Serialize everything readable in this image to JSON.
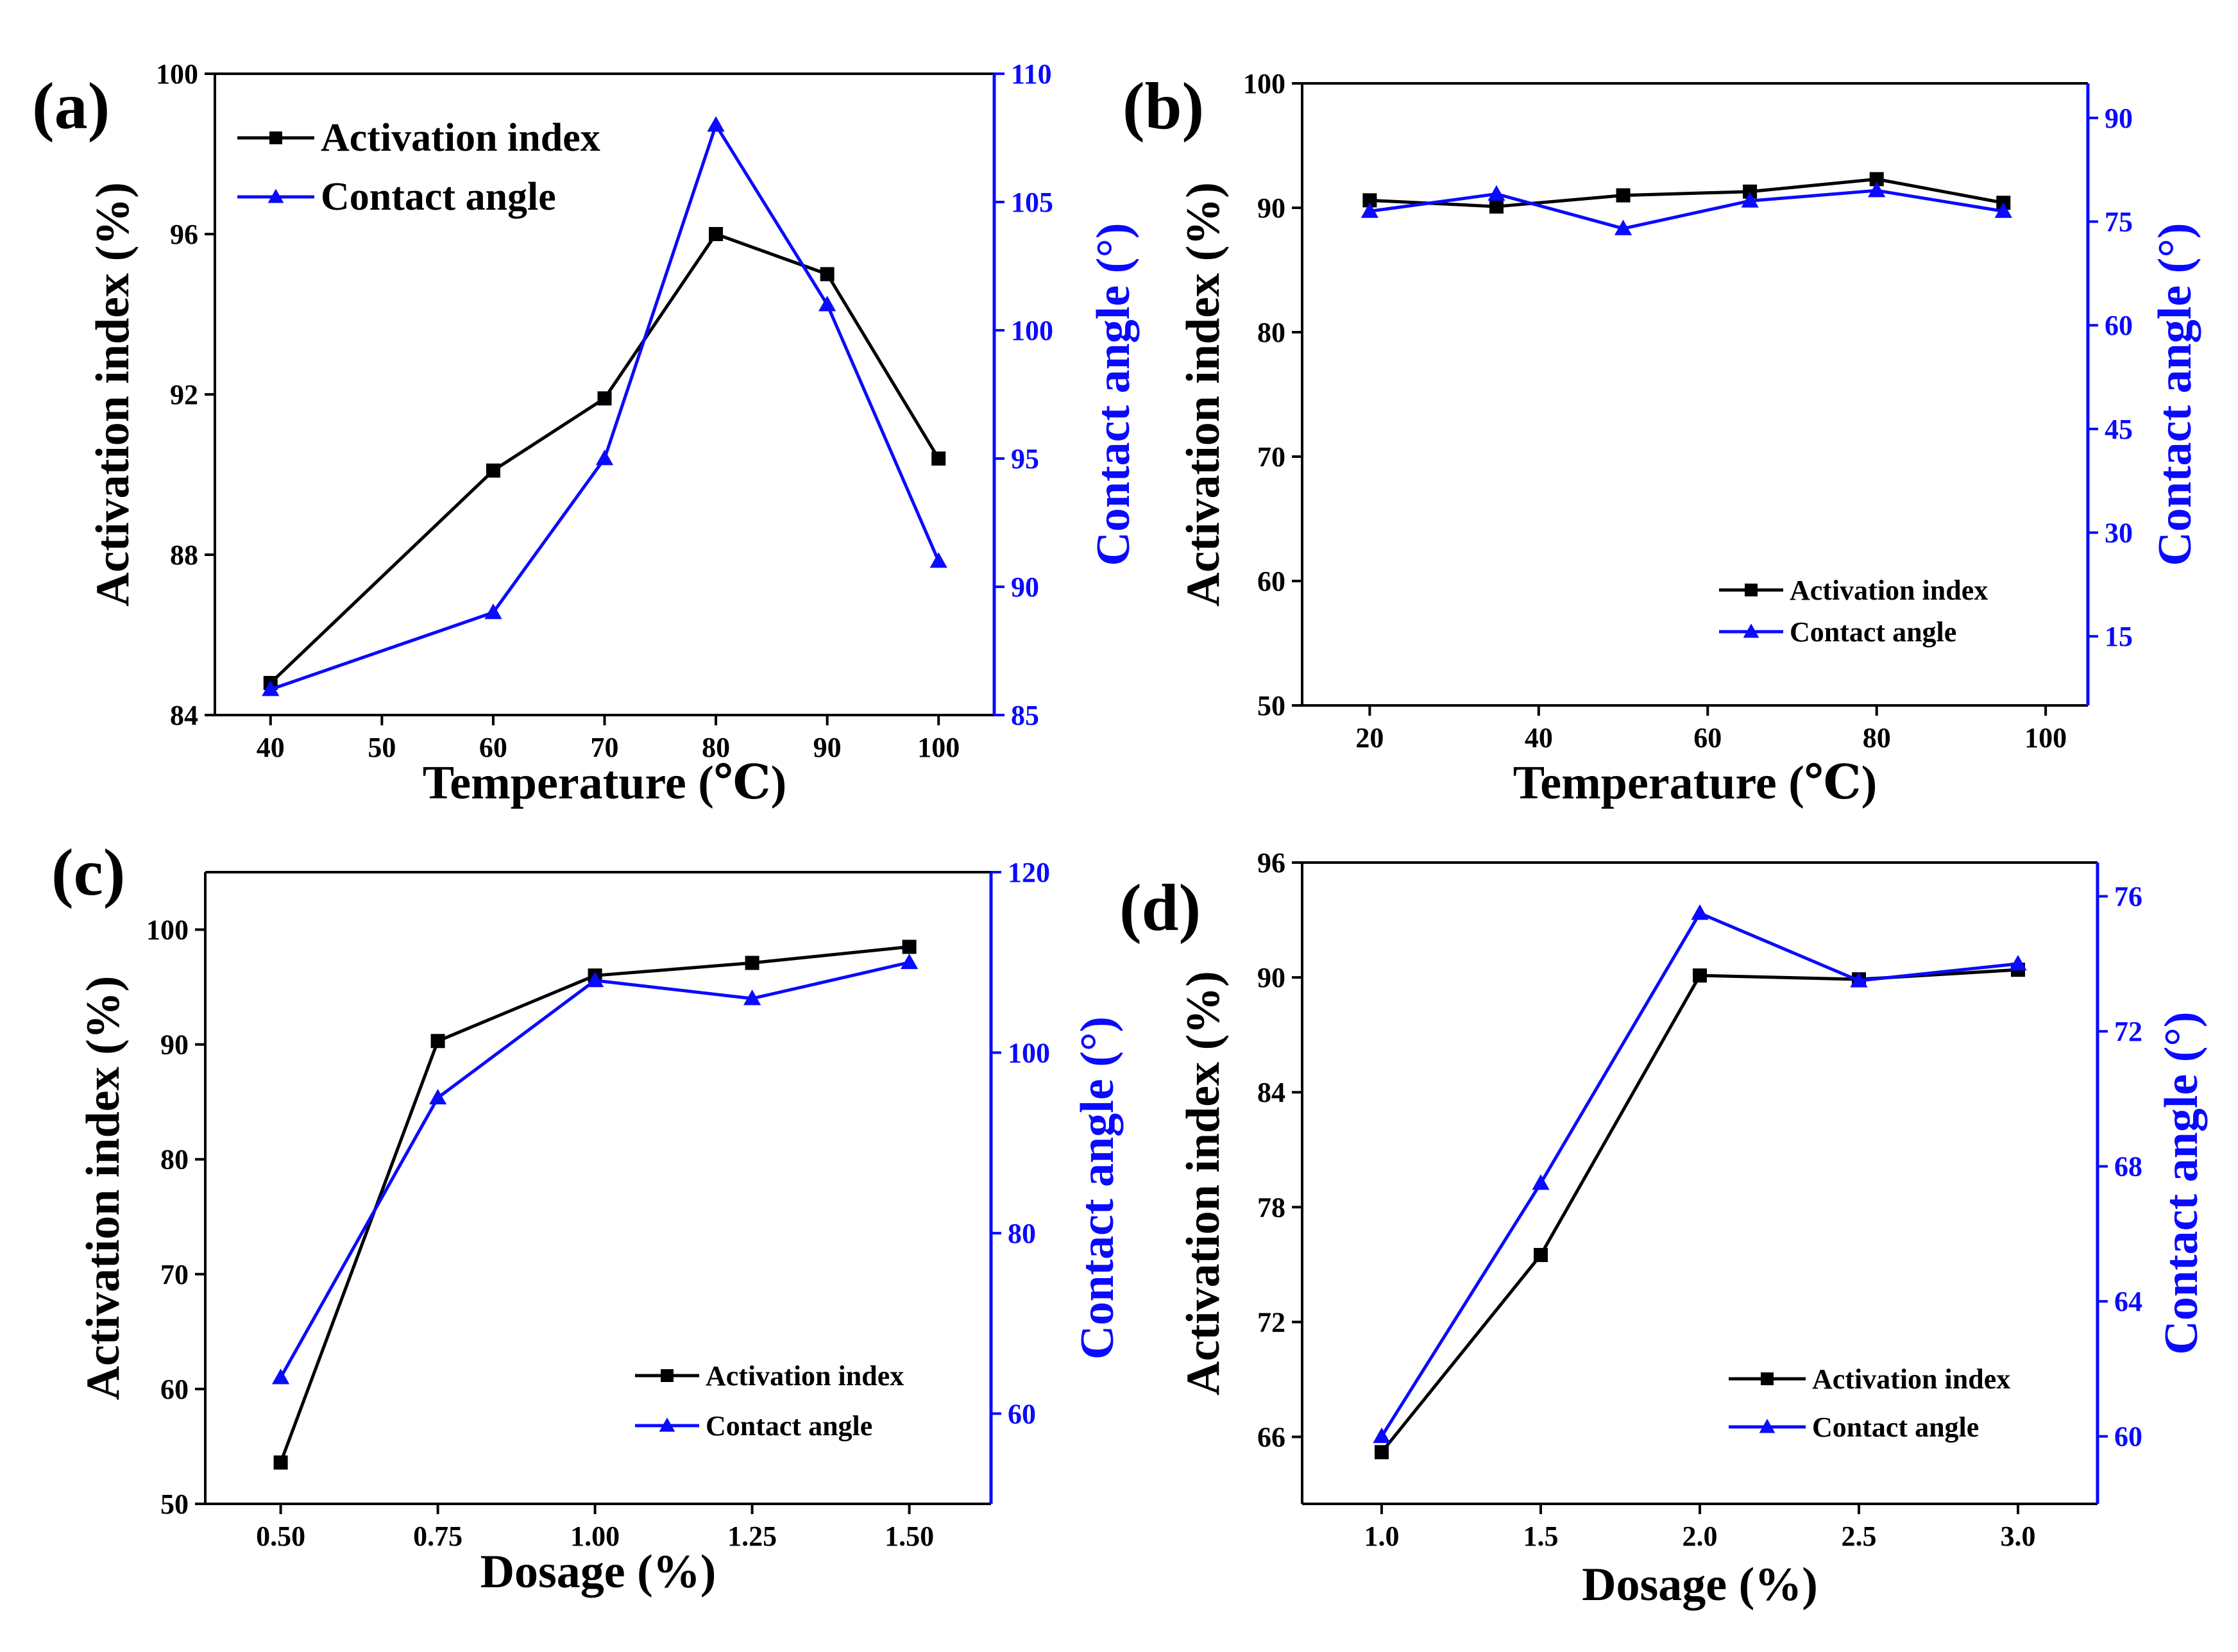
{
  "colors": {
    "primary": "#000000",
    "secondary": "#0a0aff"
  },
  "chart_data": [
    {
      "id": "a",
      "panel_label": "(a)",
      "type": "line",
      "xlabel": "Temperature (℃)",
      "ylabel": "Activation index (%)",
      "y2label": "Contact angle (°)",
      "xlim": [
        35,
        105
      ],
      "xticks": [
        40,
        50,
        60,
        70,
        80,
        90,
        100
      ],
      "ylim": [
        84,
        100
      ],
      "yticks": [
        84,
        88,
        92,
        96,
        100
      ],
      "y2lim": [
        85,
        110
      ],
      "y2ticks": [
        85,
        90,
        95,
        100,
        105,
        110
      ],
      "legend_position": "top-left",
      "legend_size": "large",
      "series": [
        {
          "name": "Activation index",
          "axis": "left",
          "marker": "square",
          "x": [
            40,
            60,
            70,
            80,
            90,
            100
          ],
          "values": [
            84.8,
            90.1,
            91.9,
            96.0,
            95.0,
            90.4
          ]
        },
        {
          "name": "Contact angle",
          "axis": "right",
          "marker": "triangle",
          "x": [
            40,
            60,
            70,
            80,
            90,
            100
          ],
          "values": [
            86,
            89,
            95,
            108,
            101,
            91
          ]
        }
      ]
    },
    {
      "id": "b",
      "panel_label": "(b)",
      "type": "line",
      "xlabel": "Temperature (℃)",
      "ylabel": "Activation index (%)",
      "y2label": "Contact angle (°)",
      "xlim": [
        12,
        105
      ],
      "xticks": [
        20,
        40,
        60,
        80,
        100
      ],
      "ylim": [
        50,
        100
      ],
      "yticks": [
        50,
        60,
        70,
        80,
        90,
        100
      ],
      "y2lim": [
        5,
        95
      ],
      "y2ticks": [
        15,
        30,
        45,
        60,
        75,
        90
      ],
      "legend_position": "bottom-right",
      "legend_size": "small",
      "series": [
        {
          "name": "Activation index",
          "axis": "left",
          "marker": "square",
          "x": [
            20,
            35,
            50,
            65,
            80,
            95
          ],
          "values": [
            90.6,
            90.1,
            91.0,
            91.3,
            92.3,
            90.4
          ]
        },
        {
          "name": "Contact angle",
          "axis": "right",
          "marker": "triangle",
          "x": [
            20,
            35,
            50,
            65,
            80,
            95
          ],
          "values": [
            76.5,
            79.0,
            74.0,
            78.0,
            79.5,
            76.5
          ]
        }
      ]
    },
    {
      "id": "c",
      "panel_label": "(c)",
      "type": "line",
      "xlabel": "Dosage (%)",
      "ylabel": "Activation index (%)",
      "y2label": "Contact angle (°)",
      "xlim": [
        0.38,
        1.63
      ],
      "xticks": [
        "0.50",
        "0.75",
        "1.00",
        "1.25",
        "1.50"
      ],
      "ylim": [
        50,
        105
      ],
      "yticks": [
        50,
        60,
        70,
        80,
        90,
        100
      ],
      "y2lim": [
        50,
        120
      ],
      "y2ticks": [
        60,
        80,
        100,
        120
      ],
      "legend_position": "bottom-right",
      "legend_size": "small",
      "series": [
        {
          "name": "Activation index",
          "axis": "left",
          "marker": "square",
          "x": [
            0.5,
            0.75,
            1.0,
            1.25,
            1.5
          ],
          "values": [
            53.6,
            90.3,
            96.0,
            97.1,
            98.5
          ]
        },
        {
          "name": "Contact angle",
          "axis": "right",
          "marker": "triangle",
          "x": [
            0.5,
            0.75,
            1.0,
            1.25,
            1.5
          ],
          "values": [
            64,
            95,
            108,
            106,
            110
          ]
        }
      ]
    },
    {
      "id": "d",
      "panel_label": "(d)",
      "type": "line",
      "xlabel": "Dosage (%)",
      "ylabel": "Activation index (%)",
      "y2label": "Contact angle (°)",
      "xlim": [
        0.75,
        3.25
      ],
      "xticks": [
        "1.0",
        "1.5",
        "2.0",
        "2.5",
        "3.0"
      ],
      "ylim": [
        62.5,
        96
      ],
      "yticks": [
        66,
        72,
        78,
        84,
        90,
        96
      ],
      "y2lim": [
        58,
        77
      ],
      "y2ticks": [
        60,
        64,
        68,
        72,
        76
      ],
      "legend_position": "bottom-right",
      "legend_size": "medium",
      "series": [
        {
          "name": "Activation index",
          "axis": "left",
          "marker": "square",
          "x": [
            1.0,
            1.5,
            2.0,
            2.5,
            3.0
          ],
          "values": [
            65.2,
            75.5,
            90.1,
            89.9,
            90.4
          ]
        },
        {
          "name": "Contact angle",
          "axis": "right",
          "marker": "triangle",
          "x": [
            1.0,
            1.5,
            2.0,
            2.5,
            3.0
          ],
          "values": [
            60.0,
            67.5,
            75.5,
            73.5,
            74.0
          ]
        }
      ]
    }
  ]
}
